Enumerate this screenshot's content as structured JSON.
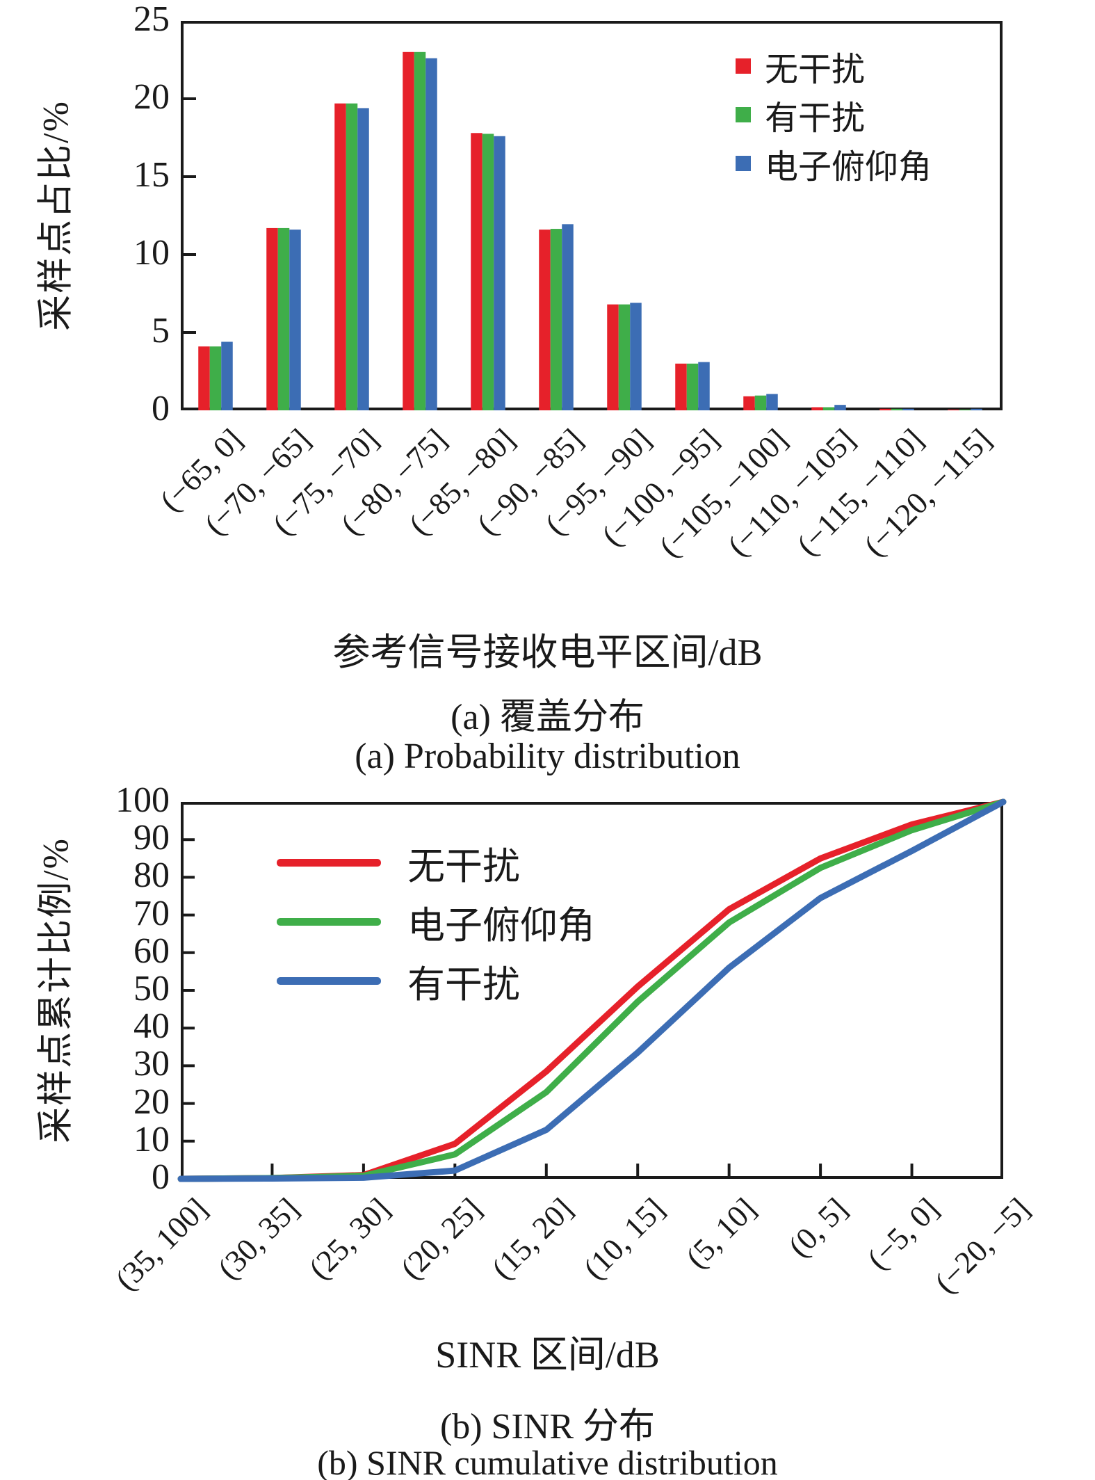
{
  "colors": {
    "red": "#e6212a",
    "green": "#3fae49",
    "blue": "#3c6db4",
    "axis": "#1a1a1a"
  },
  "chart_data": [
    {
      "id": "coverage",
      "type": "bar",
      "ylabel": "采样点占比/%",
      "xlabel": "参考信号接收电平区间/dB",
      "caption_cn": "(a) 覆盖分布",
      "caption_en": "(a) Probability distribution",
      "ylim": [
        0,
        25
      ],
      "yticks": [
        0,
        5,
        10,
        15,
        20,
        25
      ],
      "grid": false,
      "legend_position": "top-right",
      "legend_marker": "square",
      "categories": [
        "(−65, 0]",
        "(−70, −65]",
        "(−75, −70]",
        "(−80, −75]",
        "(−85, −80]",
        "(−90, −85]",
        "(−95, −90]",
        "(−100, −95]",
        "(−105, −100]",
        "(−110, −105]",
        "(−115, −110]",
        "(−120, −115]"
      ],
      "series": [
        {
          "name": "无干扰",
          "color_key": "red",
          "values": [
            4.1,
            11.7,
            19.7,
            23.0,
            17.8,
            11.6,
            6.8,
            3.0,
            0.9,
            0.2,
            0.1,
            0.05
          ]
        },
        {
          "name": "有干扰",
          "color_key": "green",
          "values": [
            4.1,
            11.7,
            19.7,
            23.0,
            17.75,
            11.65,
            6.8,
            3.0,
            0.95,
            0.2,
            0.1,
            0.05
          ]
        },
        {
          "name": "电子俯仰角",
          "color_key": "blue",
          "values": [
            4.4,
            11.6,
            19.4,
            22.6,
            17.6,
            11.95,
            6.9,
            3.1,
            1.05,
            0.35,
            0.1,
            0.1
          ]
        }
      ]
    },
    {
      "id": "sinr",
      "type": "line",
      "ylabel": "采样点累计比例/%",
      "xlabel": "SINR 区间/dB",
      "caption_cn": "(b) SINR 分布",
      "caption_en": "(b) SINR cumulative distribution",
      "ylim": [
        0,
        100
      ],
      "yticks": [
        0,
        10,
        20,
        30,
        40,
        50,
        60,
        70,
        80,
        90,
        100
      ],
      "grid": false,
      "legend_position": "top-left",
      "legend_marker": "line",
      "categories": [
        "(35, 100]",
        "(30, 35]",
        "(25, 30]",
        "(20, 25]",
        "(15, 20]",
        "(10, 15]",
        "(5, 10]",
        "(0, 5]",
        "(−5, 0]",
        "(−20, −5]"
      ],
      "series": [
        {
          "name": "无干扰",
          "color_key": "red",
          "values": [
            0,
            0.2,
            1.0,
            9.3,
            28.5,
            51,
            71.5,
            85,
            94,
            100
          ]
        },
        {
          "name": "电子俯仰角",
          "color_key": "green",
          "values": [
            0,
            0.2,
            0.8,
            6.5,
            23,
            47,
            68,
            82.5,
            92.5,
            100
          ]
        },
        {
          "name": "有干扰",
          "color_key": "blue",
          "values": [
            0,
            0.1,
            0.3,
            2.2,
            13,
            33.5,
            56,
            74.5,
            87,
            100
          ]
        }
      ]
    }
  ]
}
